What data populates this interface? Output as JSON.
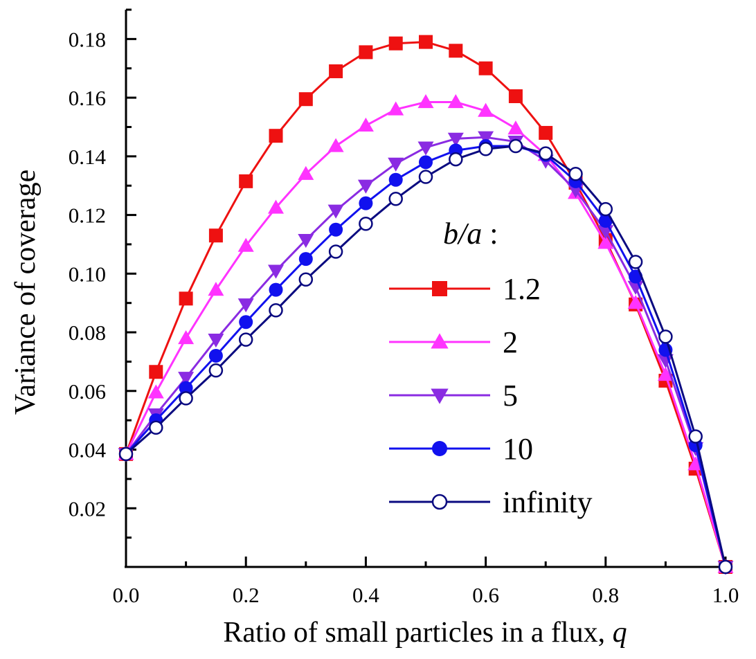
{
  "chart_data": {
    "type": "line",
    "xlabel": "Ratio of small particles in a flux, ",
    "xlabel_var": "q",
    "ylabel": "Variance of coverage",
    "xlim": [
      0.0,
      1.0
    ],
    "ylim": [
      0.0,
      0.19
    ],
    "x_ticks": [
      0.0,
      0.2,
      0.4,
      0.6,
      0.8,
      1.0
    ],
    "x_tick_labels": [
      "0.0",
      "0.2",
      "0.4",
      "0.6",
      "0.8",
      "1.0"
    ],
    "y_ticks": [
      0.02,
      0.04,
      0.06,
      0.08,
      0.1,
      0.12,
      0.14,
      0.16,
      0.18
    ],
    "y_tick_labels": [
      "0.02",
      "0.04",
      "0.06",
      "0.08",
      "0.10",
      "0.12",
      "0.14",
      "0.16",
      "0.18"
    ],
    "grid": false,
    "legend_title": "b/a",
    "legend_title_suffix": " :",
    "legend_position": "right",
    "x": [
      0.0,
      0.05,
      0.1,
      0.15,
      0.2,
      0.25,
      0.3,
      0.35,
      0.4,
      0.45,
      0.5,
      0.55,
      0.6,
      0.65,
      0.7,
      0.75,
      0.8,
      0.85,
      0.9,
      0.95,
      1.0
    ],
    "series": [
      {
        "name": "1.2",
        "color": "#ee1111",
        "marker": "square",
        "values": [
          0.0385,
          0.0665,
          0.0915,
          0.113,
          0.1315,
          0.147,
          0.1595,
          0.169,
          0.1755,
          0.1785,
          0.179,
          0.176,
          0.17,
          0.1605,
          0.148,
          0.131,
          0.1115,
          0.0895,
          0.0635,
          0.0335,
          0.0
        ]
      },
      {
        "name": "2",
        "color": "#ff33ff",
        "marker": "triangle-up",
        "values": [
          0.0385,
          0.0595,
          0.078,
          0.0945,
          0.1095,
          0.1225,
          0.134,
          0.1435,
          0.1505,
          0.156,
          0.1585,
          0.1585,
          0.1555,
          0.1495,
          0.1405,
          0.1275,
          0.1105,
          0.09,
          0.0655,
          0.035,
          0.0
        ]
      },
      {
        "name": "5",
        "color": "#8a2be2",
        "marker": "triangle-down",
        "values": [
          0.0385,
          0.052,
          0.0645,
          0.0775,
          0.0895,
          0.101,
          0.1115,
          0.1215,
          0.13,
          0.1375,
          0.143,
          0.146,
          0.1465,
          0.145,
          0.1385,
          0.1285,
          0.1145,
          0.0955,
          0.0705,
          0.0405,
          0.0
        ]
      },
      {
        "name": "10",
        "color": "#1111ee",
        "marker": "circle-filled",
        "values": [
          0.0385,
          0.05,
          0.061,
          0.072,
          0.0835,
          0.0945,
          0.105,
          0.115,
          0.124,
          0.132,
          0.138,
          0.142,
          0.1435,
          0.1435,
          0.1405,
          0.1315,
          0.118,
          0.099,
          0.074,
          0.0415,
          0.0
        ]
      },
      {
        "name": "infinity",
        "color": "#0a0a80",
        "marker": "circle-open",
        "values": [
          0.0385,
          0.0475,
          0.0575,
          0.067,
          0.0775,
          0.0875,
          0.098,
          0.1075,
          0.117,
          0.1255,
          0.133,
          0.139,
          0.1425,
          0.1435,
          0.141,
          0.134,
          0.122,
          0.104,
          0.0785,
          0.0445,
          0.0
        ]
      }
    ]
  }
}
